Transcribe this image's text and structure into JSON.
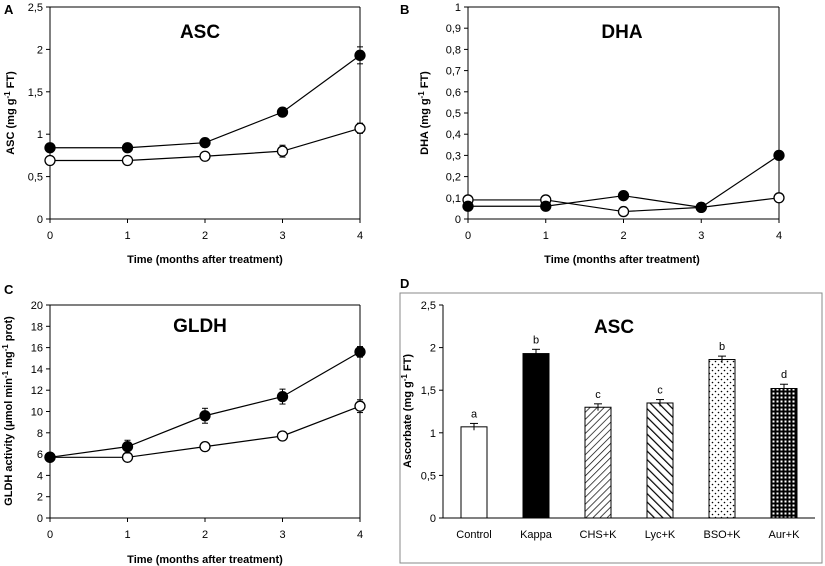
{
  "colors": {
    "axis": "#000000",
    "filled": "#000000",
    "open": "#ffffff",
    "frame": "#888888"
  },
  "chart_data": [
    {
      "panel": "A",
      "type": "line",
      "title": "ASC",
      "xlabel": "Time (months after treatment)",
      "ylabel": "ASC (mg g-1 FT)",
      "ylabel_parts": [
        "ASC (mg g",
        "-1",
        " FT)"
      ],
      "x": [
        0,
        1,
        2,
        3,
        4
      ],
      "x_ticks": [
        "0",
        "1",
        "2",
        "3",
        "4"
      ],
      "xlim": [
        0,
        4
      ],
      "ylim": [
        0,
        2.5
      ],
      "y_ticks": [
        0,
        0.5,
        1,
        1.5,
        2,
        2.5
      ],
      "y_tick_labels": [
        "0",
        "0,5",
        "1",
        "1,5",
        "2",
        "2,5"
      ],
      "series": [
        {
          "name": "filled",
          "marker": "filled",
          "values": [
            0.84,
            0.84,
            0.9,
            1.26,
            1.93
          ],
          "errors": [
            0,
            0,
            0.05,
            0.05,
            0.1
          ]
        },
        {
          "name": "open",
          "marker": "open",
          "values": [
            0.69,
            0.69,
            0.74,
            0.8,
            1.07
          ],
          "errors": [
            0,
            0,
            0,
            0.07,
            0.06
          ]
        }
      ]
    },
    {
      "panel": "B",
      "type": "line",
      "title": "DHA",
      "xlabel": "Time (months after treatment)",
      "ylabel": "DHA (mg g-1 FT)",
      "ylabel_parts": [
        "DHA (mg g",
        "-1",
        " FT)"
      ],
      "x": [
        0,
        1,
        2,
        3,
        4
      ],
      "x_ticks": [
        "0",
        "1",
        "2",
        "3",
        "4"
      ],
      "xlim": [
        0,
        4
      ],
      "ylim": [
        0,
        1
      ],
      "y_ticks": [
        0,
        0.1,
        0.2,
        0.3,
        0.4,
        0.5,
        0.6,
        0.7,
        0.8,
        0.9,
        1
      ],
      "y_tick_labels": [
        "0",
        "0,1",
        "0,2",
        "0,3",
        "0,4",
        "0,5",
        "0,6",
        "0,7",
        "0,8",
        "0,9",
        "1"
      ],
      "series": [
        {
          "name": "filled",
          "marker": "filled",
          "values": [
            0.06,
            0.06,
            0.11,
            0.055,
            0.3
          ],
          "errors": [
            0,
            0,
            0,
            0,
            0
          ]
        },
        {
          "name": "open",
          "marker": "open",
          "values": [
            0.09,
            0.09,
            0.035,
            0.055,
            0.1
          ],
          "errors": [
            0,
            0,
            0,
            0,
            0
          ]
        }
      ]
    },
    {
      "panel": "C",
      "type": "line",
      "title": "GLDH",
      "xlabel": "Time (months after treatment)",
      "ylabel": "GLDH activity (μmol min-1 mg-1 prot)",
      "ylabel_parts": [
        "GLDH activity (μmol min",
        "-1",
        " mg",
        "-1",
        " prot)"
      ],
      "x": [
        0,
        1,
        2,
        3,
        4
      ],
      "x_ticks": [
        "0",
        "1",
        "2",
        "3",
        "4"
      ],
      "xlim": [
        0,
        4
      ],
      "ylim": [
        0,
        20
      ],
      "y_ticks": [
        0,
        2,
        4,
        6,
        8,
        10,
        12,
        14,
        16,
        18,
        20
      ],
      "y_tick_labels": [
        "0",
        "2",
        "4",
        "6",
        "8",
        "10",
        "12",
        "14",
        "16",
        "18",
        "20"
      ],
      "series": [
        {
          "name": "filled",
          "marker": "filled",
          "values": [
            5.7,
            6.7,
            9.6,
            11.4,
            15.6
          ],
          "errors": [
            0,
            0.6,
            0.7,
            0.7,
            0.5
          ]
        },
        {
          "name": "open",
          "marker": "open",
          "values": [
            5.7,
            5.7,
            6.7,
            7.7,
            10.5
          ],
          "errors": [
            0,
            0,
            0,
            0,
            0.6
          ]
        }
      ]
    },
    {
      "panel": "D",
      "type": "bar",
      "title": "ASC",
      "xlabel": "",
      "ylabel": "Ascorbate (mg g-1 FT)",
      "ylabel_parts": [
        "Ascorbate (mg g",
        "-1",
        " FT)"
      ],
      "categories": [
        "Control",
        "Kappa",
        "CHS+K",
        "Lyc+K",
        "BSO+K",
        "Aur+K"
      ],
      "values": [
        1.07,
        1.93,
        1.3,
        1.35,
        1.86,
        1.52
      ],
      "errors": [
        0.04,
        0.05,
        0.04,
        0.04,
        0.04,
        0.05
      ],
      "letters": [
        "a",
        "b",
        "c",
        "c",
        "b",
        "d"
      ],
      "fills": [
        "white",
        "black",
        "hatch-dense",
        "hatch-wide",
        "dots",
        "grid"
      ],
      "ylim": [
        0,
        2.5
      ],
      "y_ticks": [
        0,
        0.5,
        1,
        1.5,
        2,
        2.5
      ],
      "y_tick_labels": [
        "0",
        "0,5",
        "1",
        "1,5",
        "2",
        "2,5"
      ]
    }
  ]
}
